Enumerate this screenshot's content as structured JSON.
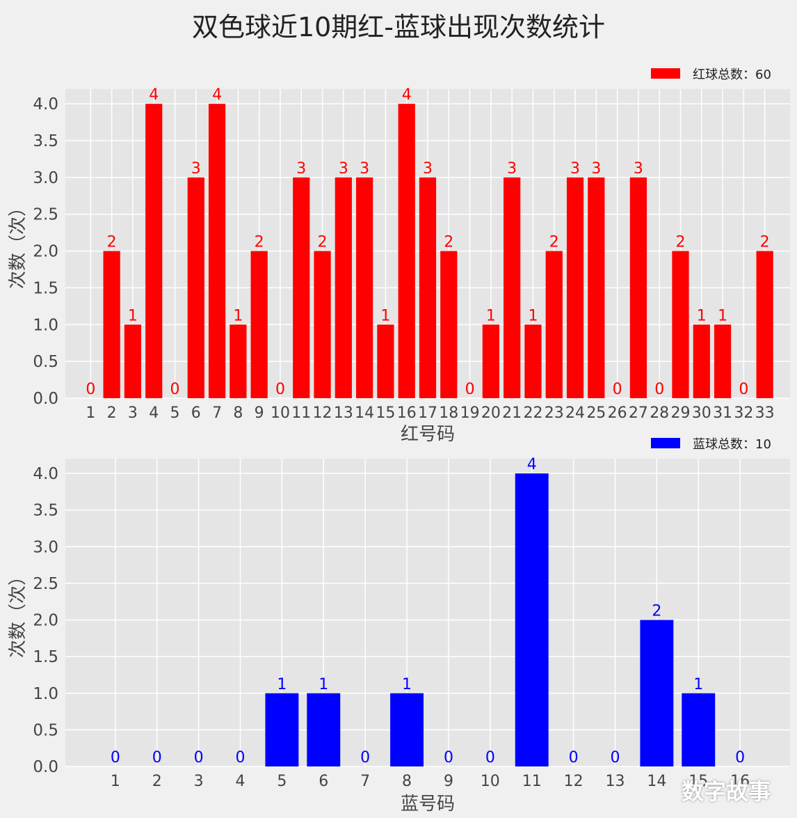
{
  "title": "双色球近10期红-蓝球出现次数统计",
  "watermark": "数字故事",
  "chart_data": [
    {
      "type": "bar",
      "color": "#ff0000",
      "legend": "红球总数：60",
      "legend_position": "top-right",
      "xlabel": "红号码",
      "ylabel": "次数（次）",
      "ylim": [
        0,
        4.2
      ],
      "yticks": [
        "0.0",
        "0.5",
        "1.0",
        "1.5",
        "2.0",
        "2.5",
        "3.0",
        "3.5",
        "4.0"
      ],
      "grid": true,
      "categories": [
        "1",
        "2",
        "3",
        "4",
        "5",
        "6",
        "7",
        "8",
        "9",
        "10",
        "11",
        "12",
        "13",
        "14",
        "15",
        "16",
        "17",
        "18",
        "19",
        "20",
        "21",
        "22",
        "23",
        "24",
        "25",
        "26",
        "27",
        "28",
        "29",
        "30",
        "31",
        "32",
        "33"
      ],
      "values": [
        0,
        2,
        1,
        4,
        0,
        3,
        4,
        1,
        2,
        0,
        3,
        2,
        3,
        3,
        1,
        4,
        3,
        2,
        0,
        1,
        3,
        1,
        2,
        3,
        3,
        0,
        3,
        0,
        2,
        1,
        1,
        0,
        2
      ]
    },
    {
      "type": "bar",
      "color": "#0000ff",
      "legend": "蓝球总数：10",
      "legend_position": "top-right",
      "xlabel": "蓝号码",
      "ylabel": "次数（次）",
      "ylim": [
        0,
        4.2
      ],
      "yticks": [
        "0.0",
        "0.5",
        "1.0",
        "1.5",
        "2.0",
        "2.5",
        "3.0",
        "3.5",
        "4.0"
      ],
      "grid": true,
      "categories": [
        "1",
        "2",
        "3",
        "4",
        "5",
        "6",
        "7",
        "8",
        "9",
        "10",
        "11",
        "12",
        "13",
        "14",
        "15",
        "16"
      ],
      "values": [
        0,
        0,
        0,
        0,
        1,
        1,
        0,
        1,
        0,
        0,
        4,
        0,
        0,
        2,
        1,
        0
      ]
    }
  ]
}
